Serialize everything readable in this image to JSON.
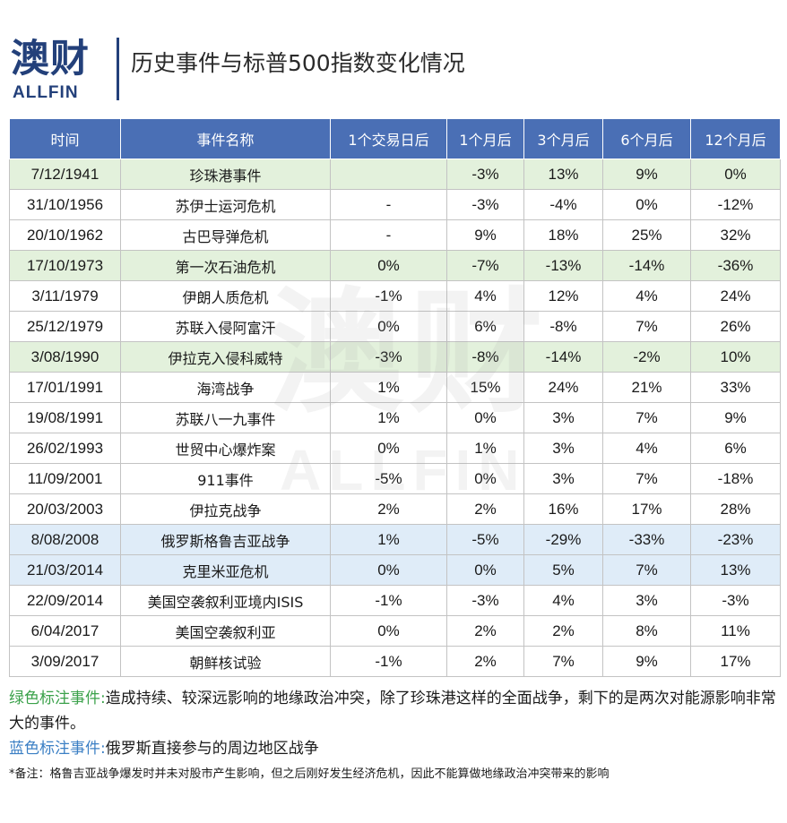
{
  "header": {
    "logo_cn": "澳财",
    "logo_en": "ALLFIN",
    "title": "历史事件与标普500指数变化情况"
  },
  "watermark": {
    "cn": "澳财",
    "en": "ALLFIN"
  },
  "table": {
    "columns": [
      "时间",
      "事件名称",
      "1个交易日后",
      "1个月后",
      "3个月后",
      "6个月后",
      "12个月后"
    ],
    "rows": [
      {
        "highlight": "green",
        "date": "7/12/1941",
        "event": "珍珠港事件",
        "d1": "",
        "m1": "-3%",
        "m3": "13%",
        "m6": "9%",
        "m12": "0%"
      },
      {
        "highlight": "none",
        "date": "31/10/1956",
        "event": "苏伊士运河危机",
        "d1": "-",
        "m1": "-3%",
        "m3": "-4%",
        "m6": "0%",
        "m12": "-12%"
      },
      {
        "highlight": "none",
        "date": "20/10/1962",
        "event": "古巴导弹危机",
        "d1": "-",
        "m1": "9%",
        "m3": "18%",
        "m6": "25%",
        "m12": "32%"
      },
      {
        "highlight": "green",
        "date": "17/10/1973",
        "event": "第一次石油危机",
        "d1": "0%",
        "m1": "-7%",
        "m3": "-13%",
        "m6": "-14%",
        "m12": "-36%"
      },
      {
        "highlight": "none",
        "date": "3/11/1979",
        "event": "伊朗人质危机",
        "d1": "-1%",
        "m1": "4%",
        "m3": "12%",
        "m6": "4%",
        "m12": "24%"
      },
      {
        "highlight": "none",
        "date": "25/12/1979",
        "event": "苏联入侵阿富汗",
        "d1": "0%",
        "m1": "6%",
        "m3": "-8%",
        "m6": "7%",
        "m12": "26%"
      },
      {
        "highlight": "green",
        "date": "3/08/1990",
        "event": "伊拉克入侵科威特",
        "d1": "-3%",
        "m1": "-8%",
        "m3": "-14%",
        "m6": "-2%",
        "m12": "10%"
      },
      {
        "highlight": "none",
        "date": "17/01/1991",
        "event": "海湾战争",
        "d1": "1%",
        "m1": "15%",
        "m3": "24%",
        "m6": "21%",
        "m12": "33%"
      },
      {
        "highlight": "none",
        "date": "19/08/1991",
        "event": "苏联八一九事件",
        "d1": "1%",
        "m1": "0%",
        "m3": "3%",
        "m6": "7%",
        "m12": "9%"
      },
      {
        "highlight": "none",
        "date": "26/02/1993",
        "event": "世贸中心爆炸案",
        "d1": "0%",
        "m1": "1%",
        "m3": "3%",
        "m6": "4%",
        "m12": "6%"
      },
      {
        "highlight": "none",
        "date": "11/09/2001",
        "event": "911事件",
        "d1": "-5%",
        "m1": "0%",
        "m3": "3%",
        "m6": "7%",
        "m12": "-18%"
      },
      {
        "highlight": "none",
        "date": "20/03/2003",
        "event": "伊拉克战争",
        "d1": "2%",
        "m1": "2%",
        "m3": "16%",
        "m6": "17%",
        "m12": "28%"
      },
      {
        "highlight": "blue",
        "date": "8/08/2008",
        "event": "俄罗斯格鲁吉亚战争",
        "d1": "1%",
        "m1": "-5%",
        "m3": "-29%",
        "m6": "-33%",
        "m12": "-23%"
      },
      {
        "highlight": "blue",
        "date": "21/03/2014",
        "event": "克里米亚危机",
        "d1": "0%",
        "m1": "0%",
        "m3": "5%",
        "m6": "7%",
        "m12": "13%"
      },
      {
        "highlight": "none",
        "date": "22/09/2014",
        "event": "美国空袭叙利亚境内ISIS",
        "d1": "-1%",
        "m1": "-3%",
        "m3": "4%",
        "m6": "3%",
        "m12": "-3%"
      },
      {
        "highlight": "none",
        "date": "6/04/2017",
        "event": "美国空袭叙利亚",
        "d1": "0%",
        "m1": "2%",
        "m3": "2%",
        "m6": "8%",
        "m12": "11%"
      },
      {
        "highlight": "none",
        "date": "3/09/2017",
        "event": "朝鲜核试验",
        "d1": "-1%",
        "m1": "2%",
        "m3": "7%",
        "m6": "9%",
        "m12": "17%"
      }
    ]
  },
  "notes": {
    "green_label": "绿色标注事件:",
    "green_text": "造成持续、较深远影响的地缘政治冲突，除了珍珠港这样的全面战争，剩下的是两次对能源影响非常大的事件。",
    "blue_label": "蓝色标注事件:",
    "blue_text": "俄罗斯直接参与的周边地区战争",
    "footnote": "*备注：格鲁吉亚战争爆发时并未对股市产生影响，但之后刚好发生经济危机，因此不能算做地缘政治冲突带来的影响"
  },
  "colors": {
    "header_bg": "#4a6fb5",
    "brand": "#23407a",
    "green_row": "#deeed6",
    "blue_row": "#dceaf7",
    "green_label": "#3aa14a",
    "blue_label": "#3b7fc4"
  }
}
